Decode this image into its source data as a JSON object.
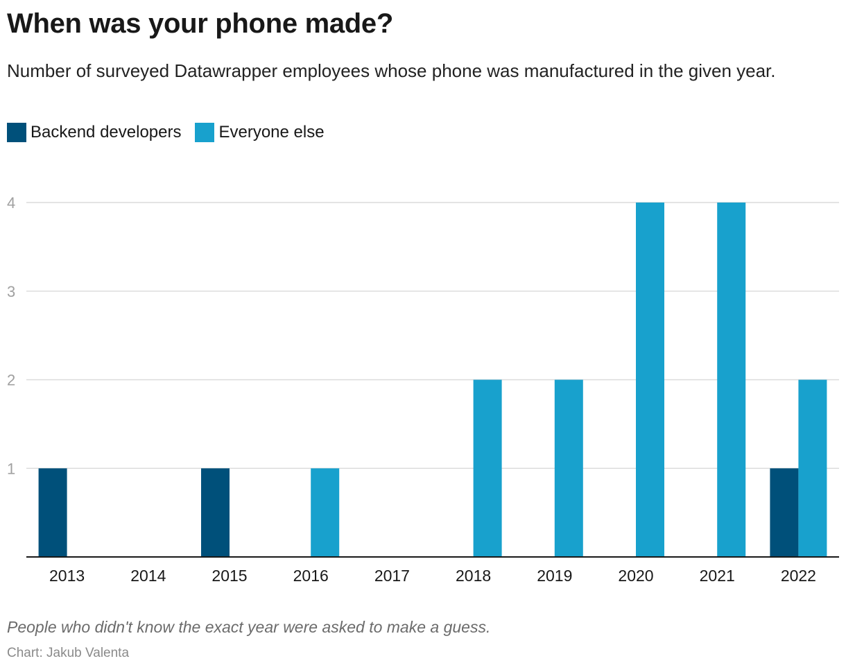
{
  "chart_data": {
    "type": "bar",
    "title": "When was your phone made?",
    "subtitle": "Number of surveyed Datawrapper employees whose phone was manufactured in the given year.",
    "categories": [
      "2013",
      "2014",
      "2015",
      "2016",
      "2017",
      "2018",
      "2019",
      "2020",
      "2021",
      "2022"
    ],
    "series": [
      {
        "name": "Backend developers",
        "color": "#00507a",
        "values": [
          1,
          0,
          1,
          0,
          0,
          0,
          0,
          0,
          0,
          1
        ]
      },
      {
        "name": "Everyone else",
        "color": "#18a1cd",
        "values": [
          0,
          0,
          0,
          1,
          0,
          2,
          2,
          4,
          4,
          2
        ]
      }
    ],
    "ylim": [
      0,
      4
    ],
    "yticks": [
      1,
      2,
      3,
      4
    ],
    "xlabel": "",
    "ylabel": "",
    "grid": true,
    "legend_position": "top-left",
    "notes": "People who didn't know the exact year were asked to make a guess.",
    "byline": "Chart: Jakub Valenta"
  }
}
